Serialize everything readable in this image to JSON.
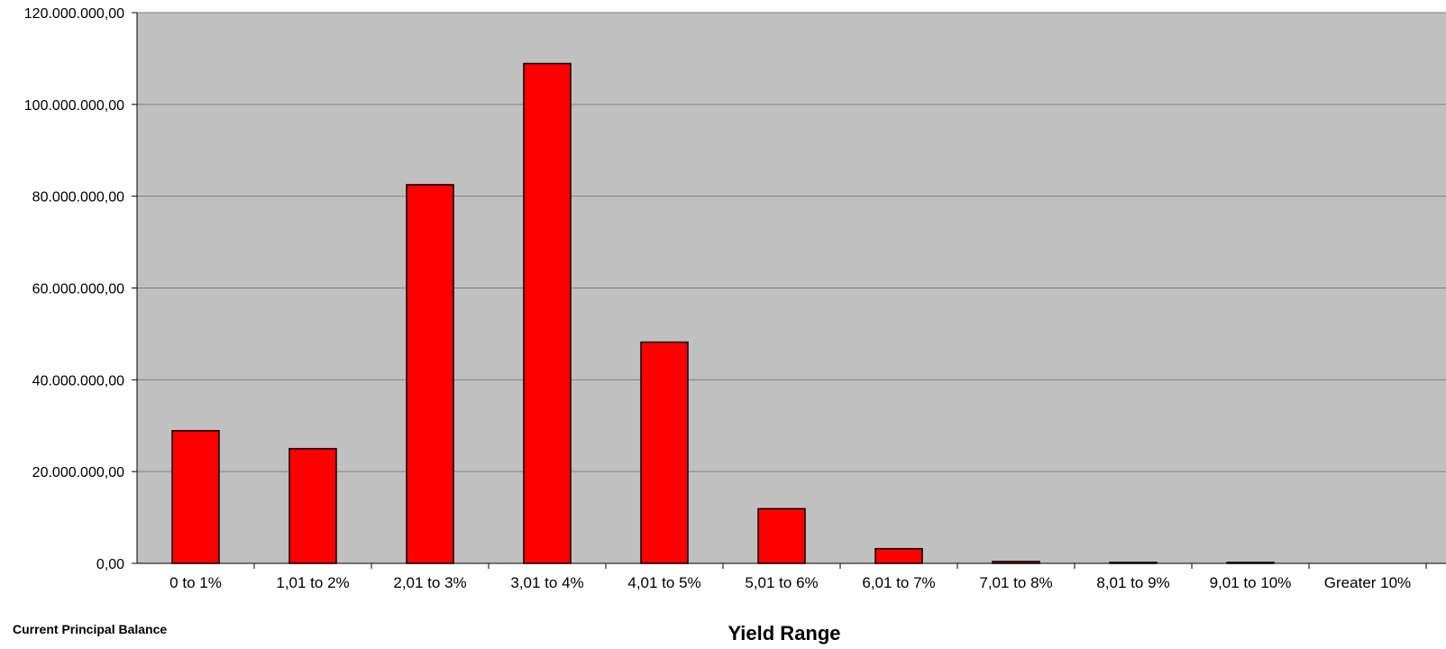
{
  "chart_data": {
    "type": "bar",
    "title": "",
    "ylabel": "Current Principal Balance",
    "xlabel": "Yield Range",
    "categories": [
      "0 to 1%",
      "1,01 to 2%",
      "2,01 to 3%",
      "3,01 to 4%",
      "4,01 to 5%",
      "5,01 to 6%",
      "6,01 to 7%",
      "7,01 to 8%",
      "8,01 to 9%",
      "9,01 to 10%",
      "Greater 10%"
    ],
    "values": [
      28900000,
      25000000,
      82500000,
      108900000,
      48200000,
      11900000,
      3200000,
      400000,
      100000,
      100000,
      0
    ],
    "ylim": [
      0,
      120000000
    ],
    "yticks": [
      0,
      20000000,
      40000000,
      60000000,
      80000000,
      100000000,
      120000000
    ],
    "ytick_labels": [
      "0,00",
      "20.000.000,00",
      "40.000.000,00",
      "60.000.000,00",
      "80.000.000,00",
      "100.000.000,00",
      "120.000.000,00"
    ],
    "grid": true,
    "legend": "none",
    "colors": {
      "bar_fill": "#ff0000",
      "bar_stroke": "#000000",
      "plot_background": "#c0c0c0",
      "gridline": "#808080"
    }
  }
}
